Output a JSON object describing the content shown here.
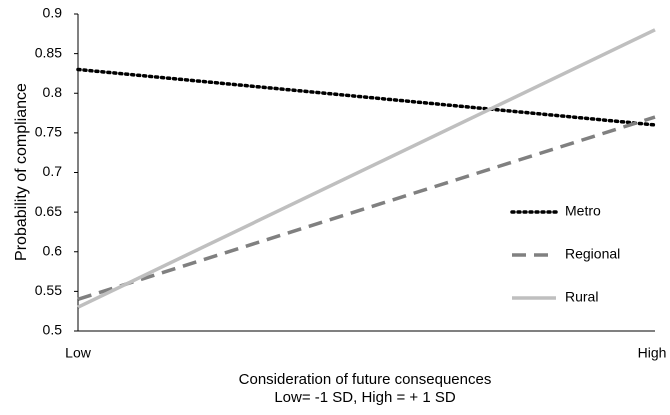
{
  "chart_data": {
    "type": "line",
    "ylabel": "Probability of compliance",
    "xlabel": [
      "Consideration of future consequences",
      "Low= -1 SD, High = + 1 SD"
    ],
    "categories": [
      "Low",
      "High"
    ],
    "series": [
      {
        "name": "Metro",
        "color": "#000000",
        "style": "dotted",
        "values": [
          0.83,
          0.76
        ]
      },
      {
        "name": "Regional",
        "color": "#808080",
        "style": "dashed",
        "values": [
          0.54,
          0.77
        ]
      },
      {
        "name": "Rural",
        "color": "#bfbfbf",
        "style": "solid",
        "values": [
          0.53,
          0.88
        ]
      }
    ],
    "ylim": [
      0.5,
      0.9
    ],
    "yticks": [
      0.5,
      0.55,
      0.6,
      0.65,
      0.7,
      0.75,
      0.8,
      0.85,
      0.9
    ],
    "grid": false,
    "legend": "right"
  }
}
